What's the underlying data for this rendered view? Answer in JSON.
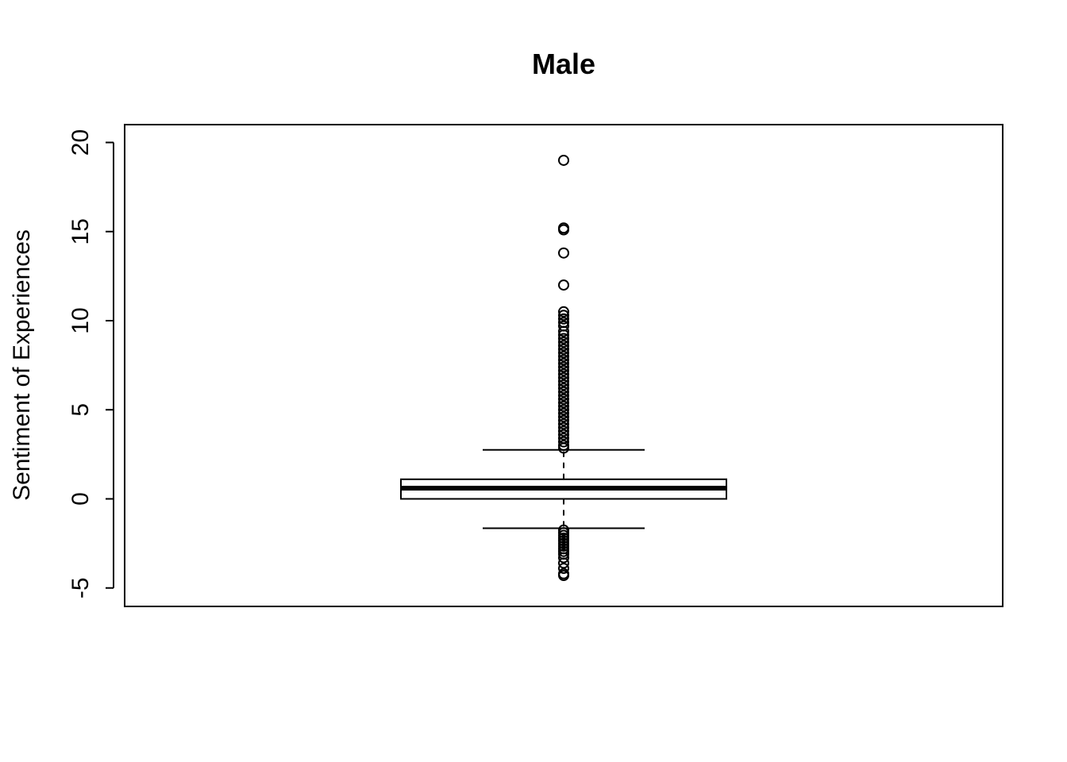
{
  "chart_data": {
    "type": "boxplot",
    "title": "Male",
    "xlabel": "",
    "ylabel": "Sentiment of Experiences",
    "ylim": [
      -6,
      21
    ],
    "yticks": [
      -5,
      0,
      5,
      10,
      15,
      20
    ],
    "ytick_labels": [
      "-5",
      "0",
      "5",
      "10",
      "15",
      "20"
    ],
    "grid": false,
    "legend": "none",
    "box": {
      "lower_whisker": -1.65,
      "q1": 0.0,
      "median": 0.6,
      "q3": 1.1,
      "upper_whisker": 2.75
    },
    "outliers": [
      19.0,
      15.2,
      15.1,
      13.8,
      12.0,
      10.5,
      10.3,
      10.1,
      9.9,
      9.7,
      9.4,
      9.2,
      9.0,
      8.8,
      8.6,
      8.4,
      8.2,
      8.0,
      7.8,
      7.6,
      7.4,
      7.2,
      7.0,
      6.8,
      6.6,
      6.4,
      6.2,
      6.0,
      5.8,
      5.6,
      5.4,
      5.2,
      5.0,
      4.8,
      4.6,
      4.4,
      4.2,
      4.0,
      3.8,
      3.6,
      3.4,
      3.2,
      3.0,
      2.85,
      -1.75,
      -1.9,
      -2.05,
      -2.2,
      -2.35,
      -2.5,
      -2.65,
      -2.8,
      -2.95,
      -3.1,
      -3.3,
      -3.6,
      -3.9,
      -4.2,
      -4.3
    ]
  }
}
